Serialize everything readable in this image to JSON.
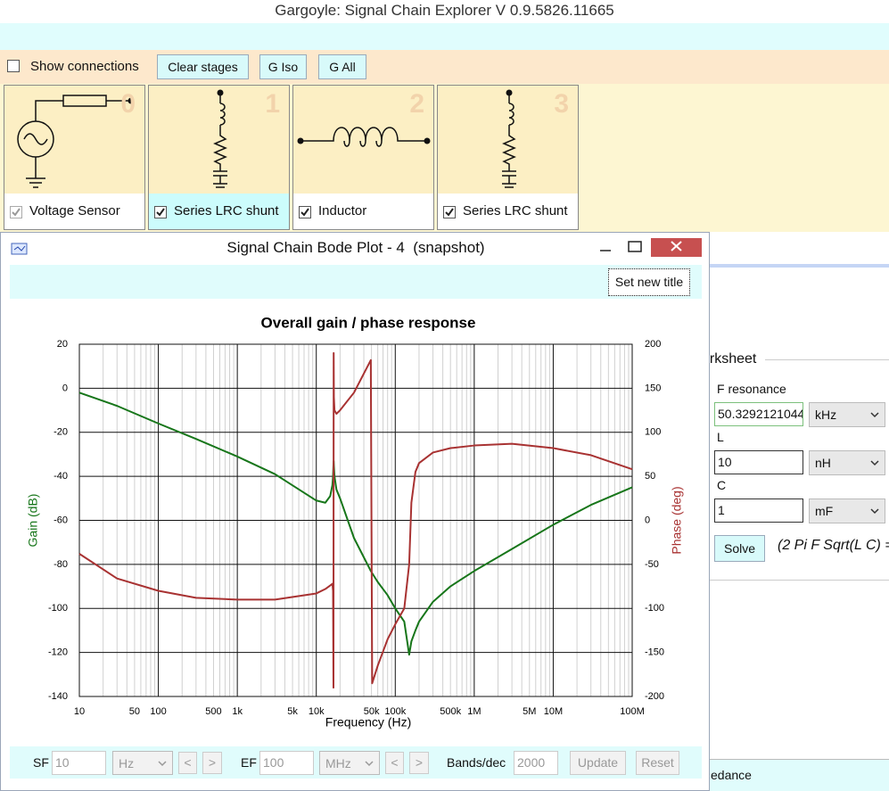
{
  "window_title": "Gargoyle: Signal Chain Explorer V 0.9.5826.11665",
  "toolbar": {
    "show_connections": {
      "label": "Show connections",
      "checked": false
    },
    "buttons": [
      "Clear stages",
      "G Iso",
      "G All"
    ]
  },
  "stages": [
    {
      "index": 0,
      "label": "Voltage Sensor",
      "checked": true,
      "enabled": false
    },
    {
      "index": 1,
      "label": "Series LRC shunt",
      "checked": true,
      "enabled": true
    },
    {
      "index": 2,
      "label": "Inductor",
      "checked": true,
      "enabled": true
    },
    {
      "index": 3,
      "label": "Series LRC shunt",
      "checked": true,
      "enabled": true
    }
  ],
  "worksheet": {
    "title": "orksheet",
    "fields": [
      {
        "label": "F resonance",
        "value": "50.3292121044",
        "unit": "kHz"
      },
      {
        "label": "L",
        "value": "10",
        "unit": "nH"
      },
      {
        "label": "C",
        "value": "1",
        "unit": "mF"
      }
    ],
    "solve": "Solve",
    "formula": "(2 Pi F Sqrt(L C) =",
    "footer": "edance"
  },
  "bode_window": {
    "title": "Signal Chain Bode Plot - 4  (snapshot)",
    "set_title": "Set new title",
    "controls": {
      "sf_label": "SF",
      "sf": "10",
      "sf_unit": "Hz",
      "ef_label": "EF",
      "ef": "100",
      "ef_unit": "MHz",
      "bands_label": "Bands/dec",
      "bands": "2000",
      "update": "Update",
      "reset": "Reset",
      "prev": "<",
      "next": ">"
    }
  },
  "chart_data": {
    "type": "line",
    "title": "Overall gain / phase response",
    "x_label": "Frequency (Hz)",
    "y_label": "Gain (dB)",
    "y2_label": "Phase (deg)",
    "xscale": "log",
    "grid": true,
    "minor_grid": true,
    "xlim": [
      10,
      100000000
    ],
    "xticks": [
      10,
      50,
      100,
      500,
      {
        "value": 1000,
        "label": "1k"
      },
      {
        "value": 5000,
        "label": "5k"
      },
      {
        "value": 10000,
        "label": "10k"
      },
      {
        "value": 50000,
        "label": "50k"
      },
      {
        "value": 100000,
        "label": "100k"
      },
      {
        "value": 500000,
        "label": "500k"
      },
      {
        "value": 1000000,
        "label": "1M"
      },
      {
        "value": 5000000,
        "label": "5M"
      },
      {
        "value": 10000000,
        "label": "10M"
      },
      {
        "value": 100000000,
        "label": "100M"
      }
    ],
    "ylim": [
      -140,
      20
    ],
    "yticks": [
      -140,
      -120,
      -100,
      -80,
      -60,
      -40,
      -20,
      0,
      20
    ],
    "y2lim": [
      -200,
      200
    ],
    "y2ticks": [
      -200,
      -150,
      -100,
      -50,
      0,
      50,
      100,
      150,
      200
    ],
    "x": [
      10,
      30,
      100,
      300,
      1000,
      3000,
      10000,
      13000,
      15000,
      16000,
      16300,
      16500,
      16600,
      16700,
      17000,
      18000,
      20000,
      30000,
      49000,
      51000,
      60000,
      80000,
      100000,
      130000,
      150000,
      160000,
      180000,
      200000,
      300000,
      500000,
      1000000,
      3000000,
      10000000,
      30000000,
      100000000
    ],
    "series": [
      {
        "name": "Gain (dB)",
        "color": "#17761a",
        "values": [
          -2,
          -8,
          -16,
          -23,
          -31,
          -39,
          -51,
          -52,
          -49,
          -44,
          -40,
          -35,
          -33,
          -35,
          -40,
          -46,
          -50,
          -68,
          -83,
          -84,
          -88,
          -94,
          -100,
          -106,
          -121,
          -115,
          -110,
          -106,
          -97,
          -90,
          -83,
          -73,
          -62,
          -53,
          -45
        ]
      },
      {
        "name": "Phase (deg)",
        "color": "#a83232",
        "axis": "y2",
        "values": [
          -38,
          -66,
          -80,
          -88,
          -90,
          -90,
          -83,
          -78,
          -74,
          -72,
          -80,
          -190,
          190,
          140,
          125,
          121,
          125,
          145,
          182,
          -185,
          -165,
          -135,
          -118,
          -100,
          -50,
          20,
          55,
          65,
          77,
          82,
          85,
          87,
          82,
          74,
          58
        ]
      }
    ]
  }
}
